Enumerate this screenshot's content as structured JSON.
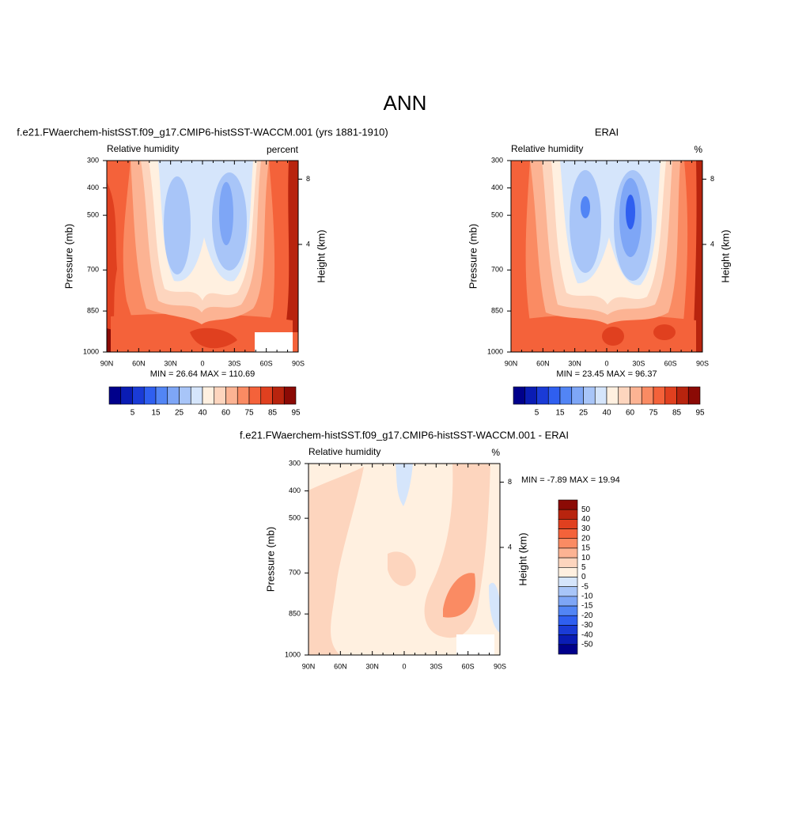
{
  "title": "ANN",
  "chart_data": [
    {
      "type": "contour",
      "title": "f.e21.FWaerchem-histSST.f09_g17.CMIP6-histSST-WACCM.001 (yrs 1881-1910)",
      "subtitle_left": "Relative humidity",
      "subtitle_right": "percent",
      "ylabel": "Pressure (mb)",
      "y2label": "Height (km)",
      "xlim": [
        90,
        -90
      ],
      "xticks": [
        {
          "value": 90,
          "label": "90N"
        },
        {
          "value": 60,
          "label": "60N"
        },
        {
          "value": 30,
          "label": "30N"
        },
        0,
        {
          "value": -30,
          "label": "30S"
        },
        {
          "value": -60,
          "label": "60S"
        },
        {
          "value": -90,
          "label": "90S"
        }
      ],
      "ylim": [
        1000,
        300
      ],
      "yticks": [
        300,
        400,
        500,
        700,
        850,
        1000
      ],
      "y2ticks": [
        8,
        4
      ],
      "stats": "MIN =  26.64  MAX = 110.69",
      "colorbar": {
        "orientation": "horizontal",
        "labels": [
          5,
          15,
          25,
          40,
          60,
          75,
          85,
          95
        ],
        "colors": [
          "#00008b",
          "#0a1cb4",
          "#1a3bd6",
          "#2f5ff0",
          "#5285f5",
          "#7ea6f6",
          "#a8c5f8",
          "#d5e5fb",
          "#fff0e0",
          "#fdd5be",
          "#fcb393",
          "#fa8b63",
          "#f4623a",
          "#e0401f",
          "#b8240e",
          "#8b0a05"
        ]
      }
    },
    {
      "type": "contour",
      "title": "ERAI",
      "subtitle_left": "Relative humidity",
      "subtitle_right": "%",
      "ylabel": "Pressure (mb)",
      "y2label": "Height (km)",
      "xlim": [
        90,
        -90
      ],
      "xticks": [
        {
          "value": 90,
          "label": "90N"
        },
        {
          "value": 60,
          "label": "60N"
        },
        {
          "value": 30,
          "label": "30N"
        },
        0,
        {
          "value": -30,
          "label": "30S"
        },
        {
          "value": -60,
          "label": "60S"
        },
        {
          "value": -90,
          "label": "90S"
        }
      ],
      "ylim": [
        1000,
        300
      ],
      "yticks": [
        300,
        400,
        500,
        700,
        850,
        1000
      ],
      "y2ticks": [
        8,
        4
      ],
      "stats": "MIN =  23.45  MAX =  96.37",
      "colorbar": {
        "orientation": "horizontal",
        "labels": [
          5,
          15,
          25,
          40,
          60,
          75,
          85,
          95
        ],
        "colors": [
          "#00008b",
          "#0a1cb4",
          "#1a3bd6",
          "#2f5ff0",
          "#5285f5",
          "#7ea6f6",
          "#a8c5f8",
          "#d5e5fb",
          "#fff0e0",
          "#fdd5be",
          "#fcb393",
          "#fa8b63",
          "#f4623a",
          "#e0401f",
          "#b8240e",
          "#8b0a05"
        ]
      }
    },
    {
      "type": "contour",
      "title": "f.e21.FWaerchem-histSST.f09_g17.CMIP6-histSST-WACCM.001 - ERAI",
      "subtitle_left": "Relative humidity",
      "subtitle_right": "%",
      "ylabel": "Pressure (mb)",
      "y2label": "Height (km)",
      "xlim": [
        90,
        -90
      ],
      "xticks": [
        {
          "value": 90,
          "label": "90N"
        },
        {
          "value": 60,
          "label": "60N"
        },
        {
          "value": 30,
          "label": "30N"
        },
        0,
        {
          "value": -30,
          "label": "30S"
        },
        {
          "value": -60,
          "label": "60S"
        },
        {
          "value": -90,
          "label": "90S"
        }
      ],
      "ylim": [
        1000,
        300
      ],
      "yticks": [
        300,
        400,
        500,
        700,
        850,
        1000
      ],
      "y2ticks": [
        8,
        4
      ],
      "stats": "MIN =  -7.89  MAX =  19.94",
      "colorbar": {
        "orientation": "vertical",
        "labels": [
          50,
          40,
          30,
          20,
          15,
          10,
          5,
          0,
          -5,
          -10,
          -15,
          -20,
          -30,
          -40,
          -50
        ],
        "colors": [
          "#8b0a05",
          "#b8240e",
          "#e0401f",
          "#f4623a",
          "#fa8b63",
          "#fcb393",
          "#fdd5be",
          "#fff0e0",
          "#d5e5fb",
          "#a8c5f8",
          "#7ea6f6",
          "#5285f5",
          "#2f5ff0",
          "#1a3bd6",
          "#0a1cb4",
          "#00008b"
        ]
      }
    }
  ]
}
